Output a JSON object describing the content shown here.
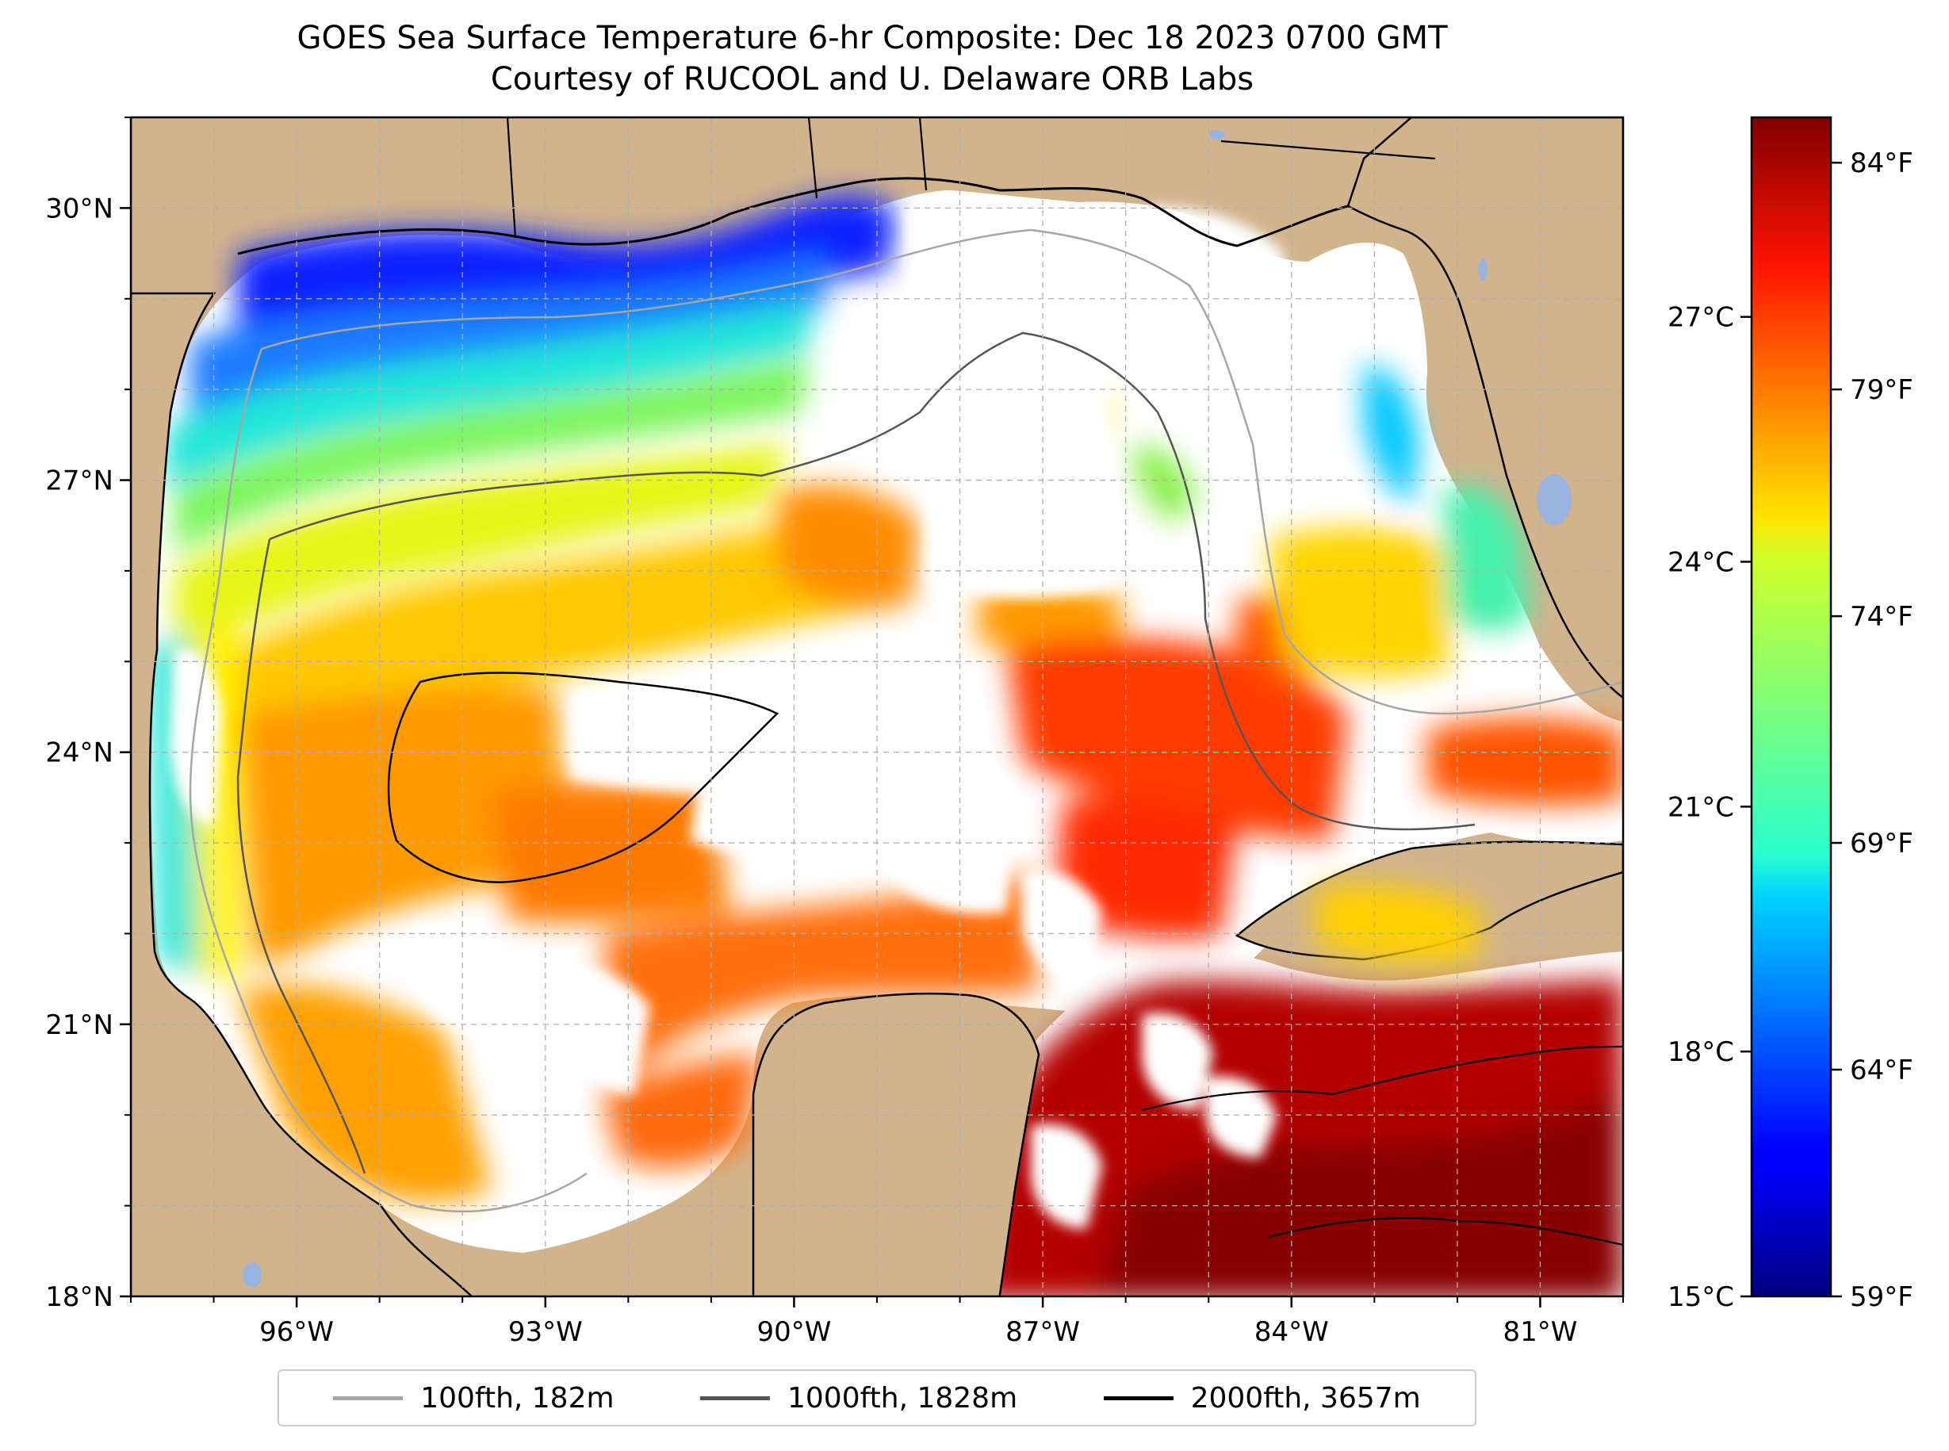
{
  "title": {
    "line1": "GOES Sea Surface Temperature 6-hr Composite: Dec 18 2023 0700 GMT",
    "line2": "Courtesy of RUCOOL and U. Delaware ORB Labs"
  },
  "map": {
    "lon_range": [
      -98,
      -80
    ],
    "lat_range": [
      18,
      31
    ],
    "lon_ticks": [
      {
        "value": -96,
        "label": "96°W"
      },
      {
        "value": -93,
        "label": "93°W"
      },
      {
        "value": -90,
        "label": "90°W"
      },
      {
        "value": -87,
        "label": "87°W"
      },
      {
        "value": -84,
        "label": "84°W"
      },
      {
        "value": -81,
        "label": "81°W"
      }
    ],
    "lat_ticks": [
      {
        "value": 18,
        "label": "18°N"
      },
      {
        "value": 21,
        "label": "21°N"
      },
      {
        "value": 24,
        "label": "24°N"
      },
      {
        "value": 27,
        "label": "27°N"
      },
      {
        "value": 30,
        "label": "30°N"
      }
    ],
    "land_color": "#d2b48c",
    "lake_color": "#99b3e0",
    "nodata_color": "#ffffff",
    "gridlines": "dashed"
  },
  "colorbar": {
    "colormap": "jet",
    "min_f": 59,
    "max_f": 85,
    "fahrenheit_ticks": [
      {
        "value": 59,
        "label": "59°F"
      },
      {
        "value": 64,
        "label": "64°F"
      },
      {
        "value": 69,
        "label": "69°F"
      },
      {
        "value": 74,
        "label": "74°F"
      },
      {
        "value": 79,
        "label": "79°F"
      },
      {
        "value": 84,
        "label": "84°F"
      }
    ],
    "celsius_ticks": [
      {
        "value": 15,
        "label": "15°C"
      },
      {
        "value": 18,
        "label": "18°C"
      },
      {
        "value": 21,
        "label": "21°C"
      },
      {
        "value": 24,
        "label": "24°C"
      },
      {
        "value": 27,
        "label": "27°C"
      }
    ]
  },
  "legend": {
    "placement": "bottom-center",
    "items": [
      {
        "label": "100fth, 182m",
        "color": "#a6a6a6"
      },
      {
        "label": "1000fth, 1828m",
        "color": "#555555"
      },
      {
        "label": "2000fth, 3657m",
        "color": "#000000"
      }
    ]
  }
}
